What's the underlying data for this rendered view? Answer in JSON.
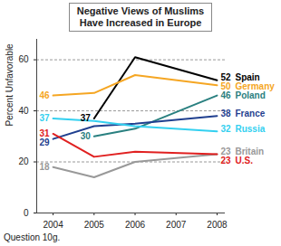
{
  "chart_data": {
    "type": "line",
    "title": "Negative Views of Muslims Have Increased in Europe",
    "y_label": "Percent Unfavorable",
    "caption": "Question 10g.",
    "x": [
      2004,
      2005,
      2006,
      2008
    ],
    "xlim": [
      2003.6,
      2008.2
    ],
    "xticks": [
      2004,
      2005,
      2006,
      2007,
      2008
    ],
    "ylim": [
      0,
      68
    ],
    "yticks": [
      0,
      20,
      40,
      60
    ],
    "grid": true,
    "series": [
      {
        "name": "Spain",
        "color": "#000000",
        "values": [
          null,
          37,
          61,
          52
        ],
        "value_labels": [
          null,
          "37",
          null,
          "52"
        ]
      },
      {
        "name": "Germany",
        "color": "#f5a623",
        "values": [
          46,
          47,
          54,
          50
        ],
        "value_labels": [
          "46",
          null,
          null,
          "50"
        ]
      },
      {
        "name": "Poland",
        "color": "#2a8080",
        "values": [
          null,
          30,
          33,
          46
        ],
        "value_labels": [
          null,
          "30",
          null,
          "46"
        ]
      },
      {
        "name": "France",
        "color": "#1f3f8f",
        "values": [
          29,
          34,
          35,
          38
        ],
        "value_labels": [
          "29",
          null,
          null,
          "38"
        ]
      },
      {
        "name": "Russia",
        "color": "#33d0f0",
        "values": [
          37,
          36,
          34,
          32
        ],
        "value_labels": [
          "37",
          null,
          null,
          "32"
        ]
      },
      {
        "name": "Britain",
        "color": "#999999",
        "values": [
          18,
          14,
          20,
          23
        ],
        "value_labels": [
          "18",
          null,
          null,
          "23"
        ]
      },
      {
        "name": "U.S.",
        "color": "#e02020",
        "values": [
          31,
          22,
          24,
          23
        ],
        "value_labels": [
          "31",
          null,
          null,
          "23"
        ]
      }
    ]
  }
}
